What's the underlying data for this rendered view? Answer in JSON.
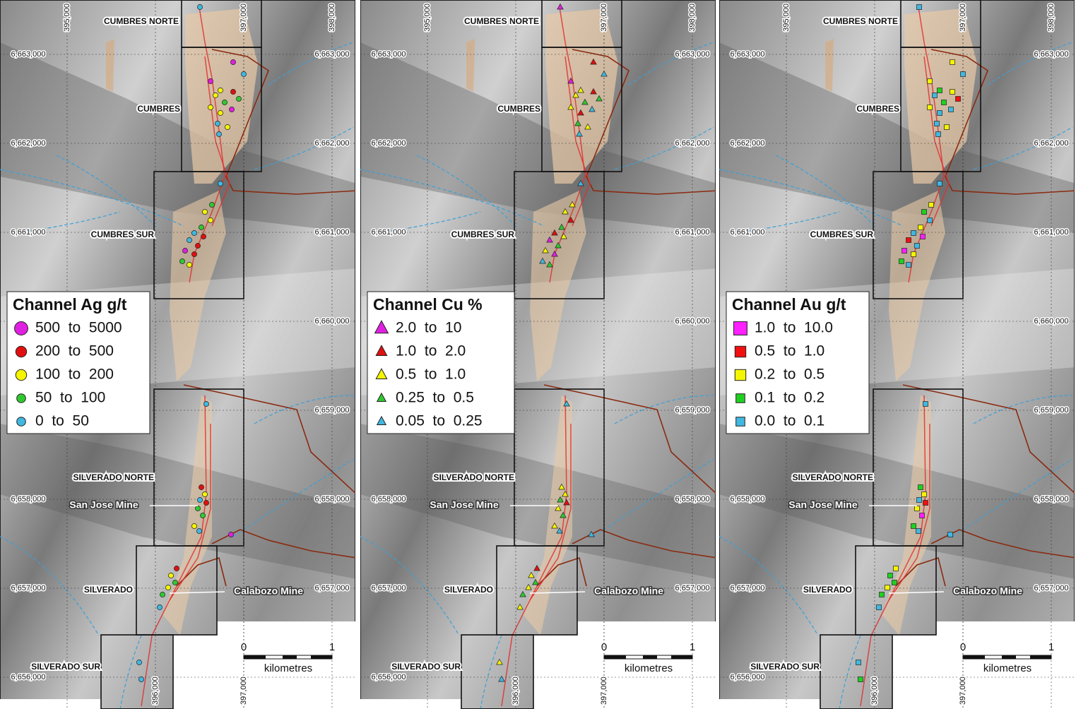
{
  "grid": {
    "eastings_top": [
      "395,000",
      "397,000",
      "398,000"
    ],
    "eastings_bottom": [
      "396,000",
      "397,000"
    ],
    "northings": [
      "6,663,000",
      "6,662,000",
      "6,661,000",
      "6,660,000",
      "6,659,000",
      "6,658,000",
      "6,657,000",
      "6,656,000"
    ]
  },
  "zones": [
    "CUMBRES NORTE",
    "CUMBRES",
    "CUMBRES SUR",
    "SILVERADO NORTE",
    "SILVERADO",
    "SILVERADO SUR"
  ],
  "mines": [
    "San Jose Mine",
    "Calabozo Mine"
  ],
  "scale_bar": {
    "start": "0",
    "end": "1",
    "unit": "kilometres"
  },
  "panels": [
    {
      "legend": {
        "title": "Channel Ag g/t",
        "marker": "circle",
        "entries": [
          {
            "label": "500  to  5000",
            "color": "#e020e0"
          },
          {
            "label": "200  to  500",
            "color": "#e01010"
          },
          {
            "label": "100  to  200",
            "color": "#f5f500"
          },
          {
            "label": "50  to  100",
            "color": "#30c830"
          },
          {
            "label": "0  to  50",
            "color": "#40b8e0"
          }
        ]
      }
    },
    {
      "legend": {
        "title": "Channel Cu %",
        "marker": "triangle",
        "entries": [
          {
            "label": "2.0  to  10",
            "color": "#e020e0"
          },
          {
            "label": "1.0  to  2.0",
            "color": "#e01010"
          },
          {
            "label": "0.5  to  1.0",
            "color": "#f5f500"
          },
          {
            "label": "0.25  to  0.5",
            "color": "#30c830"
          },
          {
            "label": "0.05  to  0.25",
            "color": "#40b8e0"
          }
        ]
      }
    },
    {
      "legend": {
        "title": "Channel Au g/t",
        "marker": "square",
        "entries": [
          {
            "label": "1.0  to  10.0",
            "color": "#ff20ff"
          },
          {
            "label": "0.5  to  1.0",
            "color": "#f01010"
          },
          {
            "label": "0.2  to  0.5",
            "color": "#f5f500"
          },
          {
            "label": "0.1  to  0.2",
            "color": "#20d020"
          },
          {
            "label": "0.0  to  0.1",
            "color": "#40b8e0"
          }
        ]
      }
    }
  ]
}
